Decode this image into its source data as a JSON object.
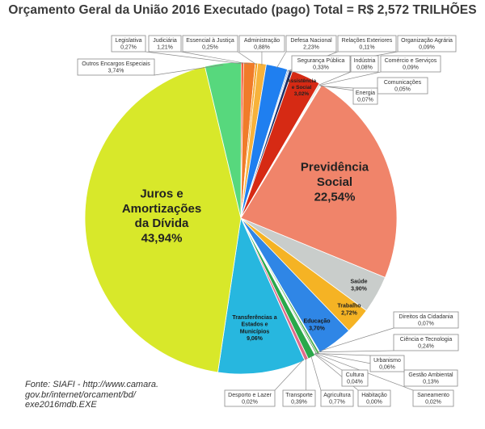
{
  "title": "Orçamento Geral da União 2016 Executado (pago) Total = R$ 2,572 TRILHÕES",
  "source": {
    "line1": "Fonte: SIAFI -  http://www.camara.",
    "line2": "gov.br/internet/orcament/bd/",
    "line3": "exe2016mdb.EXE"
  },
  "chart_data": {
    "type": "pie",
    "title": "Orçamento Geral da União 2016 Executado (pago) Total = R$ 2,572 TRILHÕES",
    "slices": [
      {
        "name": "Legislativa",
        "value": 0.27,
        "label": "0,27%",
        "color": "#f03e1a"
      },
      {
        "name": "Judiciária",
        "value": 1.21,
        "label": "1,21%",
        "color": "#f07c2a"
      },
      {
        "name": "Essencial à Justiça",
        "value": 0.25,
        "label": "0,25%",
        "color": "#f5a623"
      },
      {
        "name": "Administração",
        "value": 0.88,
        "label": "0,88%",
        "color": "#f7b23b"
      },
      {
        "name": "Defesa Nacional",
        "value": 2.23,
        "label": "2,23%",
        "color": "#1f7ff0"
      },
      {
        "name": "Relações Exteriores",
        "value": 0.11,
        "label": "0,11%",
        "color": "#3a8bd6"
      },
      {
        "name": "Organização Agrária",
        "value": 0.09,
        "label": "0,09%",
        "color": "#1e3a8a"
      },
      {
        "name": "Segurança Pública",
        "value": 0.33,
        "label": "0,33%",
        "color": "#1b2f6b"
      },
      {
        "name": "Assistência Social",
        "value": 3.02,
        "label": "3,02%",
        "color": "#d62a14"
      },
      {
        "name": "Indústria",
        "value": 0.08,
        "label": "0,08%",
        "color": "#7a1d10"
      },
      {
        "name": "Comércio e Serviços",
        "value": 0.09,
        "label": "0,09%",
        "color": "#2f8f3a"
      },
      {
        "name": "Comunicações",
        "value": 0.05,
        "label": "0,05%",
        "color": "#1aa8a0"
      },
      {
        "name": "Energia",
        "value": 0.07,
        "label": "0,07%",
        "color": "#8e44ad"
      },
      {
        "name": "Previdência Social",
        "value": 22.54,
        "label": "22,54%",
        "color": "#f0846a"
      },
      {
        "name": "Saúde",
        "value": 3.9,
        "label": "3,90%",
        "color": "#c9cdcb"
      },
      {
        "name": "Trabalho",
        "value": 2.72,
        "label": "2,72%",
        "color": "#f5b324"
      },
      {
        "name": "Educação",
        "value": 3.7,
        "label": "3,70%",
        "color": "#2f86e6"
      },
      {
        "name": "Direitos da Cidadania",
        "value": 0.07,
        "label": "0,07%",
        "color": "#e84d6a"
      },
      {
        "name": "Ciência e Tecnologia",
        "value": 0.24,
        "label": "0,24%",
        "color": "#4caf50"
      },
      {
        "name": "Gestão Ambiental",
        "value": 0.13,
        "label": "0,13%",
        "color": "#2e7d32"
      },
      {
        "name": "Saneamento",
        "value": 0.02,
        "label": "0,02%",
        "color": "#9c27b0"
      },
      {
        "name": "Urbanismo",
        "value": 0.06,
        "label": "0,06%",
        "color": "#ff9800"
      },
      {
        "name": "Cultura",
        "value": 0.04,
        "label": "0,04%",
        "color": "#795548"
      },
      {
        "name": "Habitação",
        "value": 0.0,
        "label": "0,00%",
        "color": "#607d8b"
      },
      {
        "name": "Agricultura",
        "value": 0.77,
        "label": "0,77%",
        "color": "#2aa84a"
      },
      {
        "name": "Transporte",
        "value": 0.39,
        "label": "0,39%",
        "color": "#e06a8a"
      },
      {
        "name": "Desporto e Lazer",
        "value": 0.02,
        "label": "0,02%",
        "color": "#f2a0b0"
      },
      {
        "name": "Transferências a Estados e Municípios",
        "value": 9.06,
        "label": "9,06%",
        "color": "#27b7df"
      },
      {
        "name": "Juros e Amortizações da Dívida",
        "value": 43.94,
        "label": "43,94%",
        "color": "#d8e82a"
      },
      {
        "name": "Outros Encargos Especiais",
        "value": 3.74,
        "label": "3,74%",
        "color": "#57d87d"
      }
    ]
  }
}
